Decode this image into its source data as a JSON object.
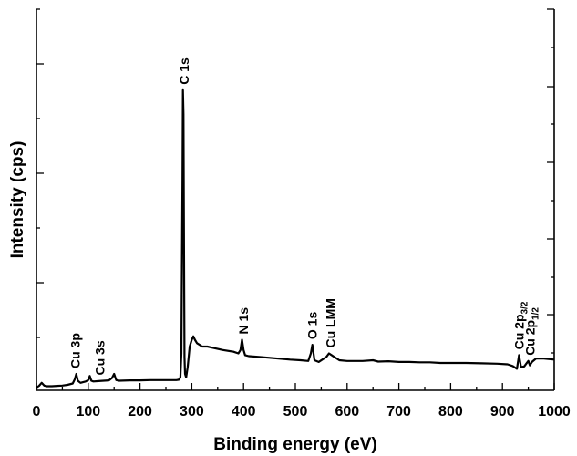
{
  "chart_data": {
    "type": "line",
    "xlabel": "Binding energy (eV)",
    "ylabel": "Intensity (cps)",
    "xlim": [
      0,
      1000
    ],
    "ylim": [
      0,
      1
    ],
    "x_ticks": [
      0,
      100,
      200,
      300,
      400,
      500,
      600,
      700,
      800,
      900,
      1000
    ],
    "y_tick_labels_shown": false,
    "grid": false,
    "legend": "none",
    "series": [
      {
        "x": [
          0,
          5,
          10,
          15,
          20,
          30,
          40,
          50,
          60,
          70,
          74,
          77,
          80,
          85,
          95,
          100,
          103,
          106,
          110,
          120,
          130,
          140,
          146,
          150,
          154,
          160,
          180,
          200,
          220,
          240,
          260,
          270,
          275,
          278,
          280,
          282,
          283,
          284,
          285,
          286,
          287,
          289,
          292,
          296,
          300,
          303,
          306,
          310,
          315,
          320,
          330,
          345,
          360,
          380,
          390,
          394,
          397,
          400,
          403,
          410,
          430,
          460,
          490,
          510,
          525,
          530,
          533,
          537,
          545,
          560,
          565,
          570,
          575,
          585,
          600,
          630,
          650,
          660,
          680,
          700,
          720,
          740,
          760,
          780,
          800,
          830,
          860,
          890,
          910,
          920,
          928,
          932,
          936,
          942,
          946,
          950,
          953,
          957,
          965,
          980,
          1000
        ],
        "y": [
          0.0,
          0.005,
          0.014,
          0.006,
          0.004,
          0.004,
          0.005,
          0.006,
          0.008,
          0.012,
          0.024,
          0.04,
          0.02,
          0.014,
          0.018,
          0.022,
          0.034,
          0.02,
          0.018,
          0.019,
          0.02,
          0.021,
          0.028,
          0.04,
          0.022,
          0.02,
          0.021,
          0.021,
          0.022,
          0.022,
          0.022,
          0.022,
          0.023,
          0.03,
          0.1,
          0.6,
          0.87,
          0.8,
          0.4,
          0.09,
          0.04,
          0.03,
          0.06,
          0.12,
          0.14,
          0.15,
          0.14,
          0.13,
          0.125,
          0.12,
          0.12,
          0.115,
          0.11,
          0.105,
          0.1,
          0.11,
          0.14,
          0.11,
          0.095,
          0.092,
          0.09,
          0.086,
          0.082,
          0.08,
          0.078,
          0.1,
          0.125,
          0.08,
          0.075,
          0.09,
          0.1,
          0.095,
          0.09,
          0.08,
          0.078,
          0.078,
          0.08,
          0.076,
          0.077,
          0.075,
          0.075,
          0.074,
          0.074,
          0.072,
          0.072,
          0.072,
          0.071,
          0.07,
          0.068,
          0.063,
          0.055,
          0.095,
          0.06,
          0.062,
          0.07,
          0.078,
          0.065,
          0.075,
          0.085,
          0.085,
          0.082
        ]
      }
    ],
    "annotations": [
      {
        "text": "Cu 3p",
        "x": 75
      },
      {
        "text": "Cu 3s",
        "x": 122
      },
      {
        "text": "C 1s",
        "x": 285
      },
      {
        "text": "N 1s",
        "x": 400
      },
      {
        "text": "O 1s",
        "x": 533
      },
      {
        "text": "Cu LMM",
        "x": 568
      },
      {
        "text": "Cu 2p",
        "sub": "3/2",
        "x": 932
      },
      {
        "text": "Cu 2p",
        "sub": "1/2",
        "x": 953
      }
    ]
  }
}
